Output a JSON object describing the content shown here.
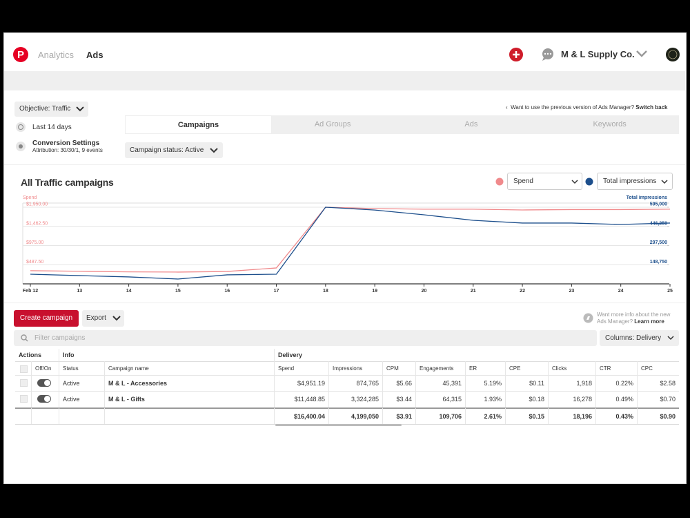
{
  "header": {
    "nav": [
      "Analytics",
      "Ads"
    ],
    "account": "M & L Supply Co."
  },
  "controls": {
    "objective": "Objective: Traffic",
    "date_range": "Last 14 days",
    "conversion": {
      "title": "Conversion Settings",
      "detail": "Attribution: 30/30/1, 9 events"
    },
    "previous_version": {
      "text": "Want to use the previous version of Ads Manager?",
      "link": "Switch back"
    },
    "tabs": [
      "Campaigns",
      "Ad Groups",
      "Ads",
      "Keywords"
    ],
    "campaign_status": "Campaign status: Active"
  },
  "chart_data": {
    "type": "line",
    "title": "All Traffic campaigns",
    "categories": [
      "Feb 12",
      "13",
      "14",
      "15",
      "16",
      "17",
      "18",
      "19",
      "20",
      "21",
      "22",
      "23",
      "24",
      "25"
    ],
    "series": [
      {
        "name": "Spend",
        "color": "#f08a8c",
        "values": [
          335,
          320,
          305,
          300,
          315,
          405,
          1950,
          1915,
          1900,
          1900,
          1880,
          1890,
          1890,
          1900
        ]
      },
      {
        "name": "Total impressions",
        "color": "#1d4f8c",
        "axis": "y2",
        "values": [
          75000,
          64000,
          54000,
          37500,
          70000,
          75000,
          595000,
          573000,
          536000,
          493000,
          472000,
          472000,
          461000,
          472000
        ]
      }
    ],
    "ylim": [
      0,
      1950
    ],
    "yticks": [
      {
        "value": 487.5,
        "label": "$487.50"
      },
      {
        "value": 975,
        "label": "$975.00"
      },
      {
        "value": 1462.5,
        "label": "$1,462.50"
      },
      {
        "value": 1950,
        "label": "$1,950.00"
      }
    ],
    "y2lim": [
      0,
      595000
    ],
    "y2ticks": [
      {
        "value": 148750,
        "label": "148,750"
      },
      {
        "value": 297500,
        "label": "297,500"
      },
      {
        "value": 446250,
        "label": "446,250"
      },
      {
        "value": 595000,
        "label": "595,000"
      }
    ],
    "grid": true
  },
  "actions": {
    "create": "Create campaign",
    "export": "Export",
    "help": {
      "text": "Want more info about the new Ads Manager?",
      "link": "Learn more"
    },
    "filter": "Filter campaigns",
    "columns": "Columns: Delivery"
  },
  "table": {
    "groups": [
      "Actions",
      "Info",
      "Delivery"
    ],
    "columns": [
      "Off/On",
      "Status",
      "Campaign name",
      "Spend",
      "Impressions",
      "CPM",
      "Engagements",
      "ER",
      "CPE",
      "Clicks",
      "CTR",
      "CPC"
    ],
    "rows": [
      {
        "status": "Active",
        "name": "M & L - Accessories",
        "cells": [
          "$4,951.19",
          "874,765",
          "$5.66",
          "45,391",
          "5.19%",
          "$0.11",
          "1,918",
          "0.22%",
          "$2.58"
        ]
      },
      {
        "status": "Active",
        "name": "M & L - Gifts",
        "cells": [
          "$11,448.85",
          "3,324,285",
          "$3.44",
          "64,315",
          "1.93%",
          "$0.18",
          "16,278",
          "0.49%",
          "$0.70"
        ]
      }
    ],
    "totals": [
      "$16,400.04",
      "4,199,050",
      "$3.91",
      "109,706",
      "2.61%",
      "$0.15",
      "18,196",
      "0.43%",
      "$0.90"
    ]
  }
}
